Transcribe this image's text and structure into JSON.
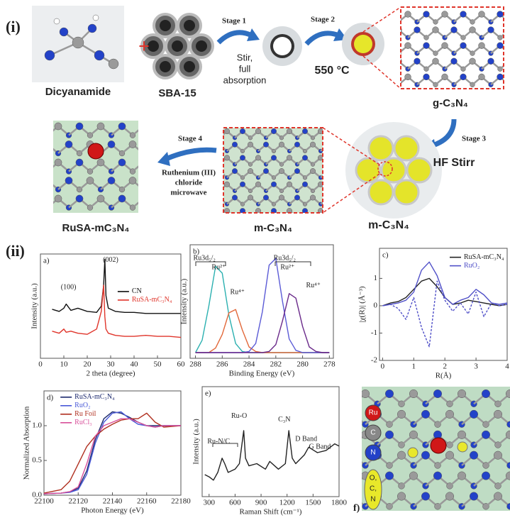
{
  "schematic": {
    "label": "(i)",
    "plus": "+",
    "dicyanamide": "Dicyanamide",
    "sba15": "SBA-15",
    "stage1": "Stage 1",
    "stage1_note": [
      "Stir,",
      "full",
      "absorption"
    ],
    "stage2": "Stage 2",
    "stage2_note": "550 °C",
    "gc3n4": "g-C₃N₄",
    "stage3": "Stage 3",
    "stage3_note": "HF Stirr",
    "mc3n4_template": "m-C₃N₄",
    "mc3n4": "m-C₃N₄",
    "stage4": "Stage 4",
    "stage4_note": [
      "Ruthenium (III)",
      "chloride",
      "microwave"
    ],
    "rusa": "RuSA-mC₃N₄"
  },
  "panel_ii": "(ii)",
  "panel_f": {
    "label": "f)",
    "legend": [
      "Ru",
      "C",
      "N",
      "O,",
      "C,",
      "N"
    ]
  },
  "chart_data": [
    {
      "type": "line",
      "panel": "a)",
      "xlabel": "2 theta (degree)",
      "ylabel": "Intensity (a.u.)",
      "x": [
        5,
        8,
        10,
        11,
        13,
        16,
        20,
        24,
        26,
        27,
        27.5,
        28,
        29,
        32,
        36,
        40,
        45,
        50,
        55,
        60
      ],
      "xlim": [
        0,
        60
      ],
      "xticks": [
        0,
        10,
        20,
        30,
        40,
        50,
        60
      ],
      "ylim": [
        0,
        100
      ],
      "annotations": [
        "(100)",
        "(002)"
      ],
      "series": [
        {
          "name": "CN",
          "color": "#111111",
          "values": [
            47,
            45,
            48,
            52,
            46,
            48,
            45,
            44,
            50,
            70,
            95,
            60,
            48,
            45,
            44,
            44,
            43,
            43,
            43,
            43
          ]
        },
        {
          "name": "RuSA-mC₃N₄",
          "color": "#e0352b",
          "values": [
            26,
            24,
            28,
            25,
            26,
            24,
            23,
            28,
            45,
            70,
            40,
            28,
            24,
            22,
            21,
            21,
            22,
            21,
            21,
            20
          ]
        }
      ]
    },
    {
      "type": "line",
      "panel": "b)",
      "xlabel": "Binding Energy (eV)",
      "ylabel": "Intensity (a.u.)",
      "x": [
        288,
        287.5,
        287,
        286.5,
        286,
        285.5,
        285,
        284.5,
        284,
        283.5,
        283,
        282.5,
        282,
        281.5,
        281,
        280.5,
        280,
        279.5,
        279,
        278.5,
        278
      ],
      "xlim": [
        288.4,
        277.7
      ],
      "xticks": [
        288,
        286,
        284,
        282,
        280,
        278
      ],
      "ylim": [
        0,
        100
      ],
      "annotations": [
        "Ru3d₅/₂",
        "Ru²⁺",
        "Ru⁴⁺",
        "Ru3d₅/₂",
        "Ru²⁺",
        "Ru⁴⁺"
      ],
      "series": [
        {
          "color": "#2bb0b0",
          "values": [
            5,
            16,
            46,
            81,
            75,
            38,
            13,
            6,
            5,
            5,
            5,
            5,
            5,
            5,
            5,
            5,
            5,
            5,
            5,
            5,
            5
          ]
        },
        {
          "color": "#e2683a",
          "values": [
            5,
            5,
            5,
            9,
            21,
            40,
            43,
            25,
            10,
            6,
            5,
            5,
            5,
            5,
            5,
            5,
            5,
            5,
            5,
            5,
            5
          ]
        },
        {
          "color": "#5b5bd6",
          "values": [
            5,
            5,
            5,
            5,
            5,
            5,
            5,
            5,
            6,
            13,
            41,
            82,
            88,
            50,
            17,
            7,
            5,
            5,
            5,
            5,
            5
          ]
        },
        {
          "color": "#6a2a8a",
          "values": [
            5,
            5,
            5,
            5,
            5,
            5,
            5,
            5,
            5,
            5,
            5,
            6,
            12,
            33,
            57,
            53,
            28,
            10,
            6,
            5,
            5
          ]
        }
      ]
    },
    {
      "type": "line",
      "panel": "c)",
      "xlabel": "R(Å)",
      "ylabel": "|χ(R)| (Å⁻³)",
      "x": [
        0,
        0.25,
        0.5,
        0.75,
        1,
        1.25,
        1.5,
        1.75,
        2,
        2.25,
        2.5,
        2.75,
        3,
        3.25,
        3.5,
        3.75,
        4
      ],
      "xlim": [
        -0.1,
        4
      ],
      "xticks": [
        0,
        1,
        2,
        3,
        4
      ],
      "ylim": [
        -2,
        2.1
      ],
      "yticks": [
        -2,
        -1,
        0,
        1
      ],
      "series": [
        {
          "name": "RuSA-mC₃N₄",
          "color": "#222222",
          "values": [
            0,
            0.1,
            0.15,
            0.3,
            0.6,
            0.9,
            1.0,
            0.7,
            0.3,
            0.05,
            0.1,
            0.2,
            0.15,
            0.1,
            0.05,
            0,
            0.05
          ]
        },
        {
          "name": "RuO₂",
          "color": "#5050c8",
          "values": [
            0,
            0.05,
            0.1,
            0.2,
            0.5,
            1.3,
            1.6,
            1.1,
            0.3,
            0.05,
            0.2,
            0.3,
            0.6,
            0.4,
            0.1,
            0.05,
            0.1
          ]
        },
        {
          "color": "#5050c8",
          "dash": true,
          "values": [
            0,
            0.05,
            -0.1,
            -0.5,
            0.3,
            -0.8,
            -1.5,
            0.9,
            0.2,
            -0.2,
            0.1,
            -0.3,
            0.5,
            -0.4,
            0.1,
            0,
            0.05
          ]
        }
      ]
    },
    {
      "type": "line",
      "panel": "d)",
      "xlabel": "Photon Energy (eV)",
      "ylabel": "Normalized Absorption",
      "x": [
        22100,
        22110,
        22115,
        22120,
        22125,
        22130,
        22135,
        22140,
        22145,
        22150,
        22155,
        22160,
        22165,
        22170,
        22180
      ],
      "xlim": [
        22100,
        22180
      ],
      "xticks": [
        22100,
        22120,
        22140,
        22160,
        22180
      ],
      "ylim": [
        0,
        1.5
      ],
      "yticks": [
        {
          "value": 0,
          "label": "0.0"
        },
        0.5,
        {
          "value": 1,
          "label": "1.0"
        }
      ],
      "series": [
        {
          "name": "RuSA-mC₃N₄",
          "color": "#1d2a6e",
          "values": [
            0.02,
            0.03,
            0.05,
            0.1,
            0.35,
            0.8,
            1.1,
            1.2,
            1.18,
            1.12,
            1.05,
            1.0,
            1.0,
            1.0,
            1.0
          ]
        },
        {
          "name": "RuO₂",
          "color": "#4a5ad8",
          "values": [
            0.02,
            0.03,
            0.04,
            0.08,
            0.3,
            0.75,
            1.05,
            1.18,
            1.2,
            1.1,
            1.02,
            1.0,
            0.98,
            1.0,
            1.0
          ]
        },
        {
          "name": "Ru Foil",
          "color": "#b03020",
          "values": [
            0.03,
            0.08,
            0.2,
            0.45,
            0.7,
            0.85,
            0.95,
            1.02,
            1.08,
            1.1,
            1.1,
            1.18,
            1.05,
            0.98,
            1.0
          ]
        },
        {
          "name": "RuCl₃",
          "color": "#d8509a",
          "values": [
            0.02,
            0.03,
            0.05,
            0.12,
            0.45,
            0.85,
            1.0,
            1.05,
            1.1,
            1.1,
            1.05,
            1.0,
            0.98,
            1.0,
            1.0
          ]
        }
      ]
    },
    {
      "type": "line",
      "panel": "e)",
      "xlabel": "Raman Shift (cm⁻¹)",
      "ylabel": "Intensity (a.u.)",
      "x": [
        250,
        300,
        350,
        400,
        450,
        480,
        520,
        600,
        650,
        700,
        720,
        760,
        850,
        950,
        1000,
        1100,
        1180,
        1220,
        1260,
        1300,
        1400,
        1450,
        1550,
        1650,
        1750,
        1800
      ],
      "xlim": [
        220,
        1800
      ],
      "xticks": [
        300,
        600,
        900,
        1200,
        1500,
        1800
      ],
      "ylim": [
        0,
        100
      ],
      "annotations": [
        "Ru-N/C",
        "Ru-O",
        "C₃N",
        "D Band",
        "G Band"
      ],
      "series": [
        {
          "color": "#222222",
          "values": [
            20,
            18,
            15,
            22,
            35,
            30,
            22,
            25,
            30,
            60,
            35,
            28,
            30,
            25,
            32,
            25,
            30,
            60,
            35,
            30,
            38,
            45,
            40,
            42,
            48,
            46
          ]
        }
      ]
    }
  ]
}
